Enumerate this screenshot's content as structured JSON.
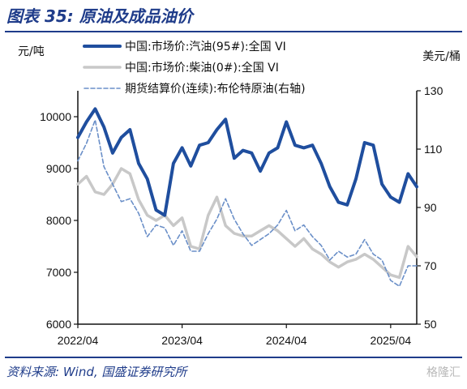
{
  "header": {
    "title": "图表 35:  原油及成品油价"
  },
  "footer": {
    "source": "资料来源:  Wind, 国盛证券研究所",
    "watermark": "格隆汇"
  },
  "chart_data": {
    "type": "line",
    "left_unit": "元/吨",
    "right_unit": "美元/桶",
    "x_ticks": [
      "2022/04",
      "2023/04",
      "2024/04",
      "2025/04"
    ],
    "x_range": [
      "2022/04",
      "2025/07"
    ],
    "y_left": {
      "min": 6000,
      "max": 10500,
      "ticks": [
        6000,
        7000,
        8000,
        9000,
        10000
      ]
    },
    "y_right": {
      "min": 50,
      "max": 130,
      "ticks": [
        50,
        70,
        90,
        110,
        130
      ]
    },
    "grid": false,
    "legend_position": "top",
    "series": [
      {
        "name": "中国:市场价:汽油(95#):全国 VI",
        "axis": "left",
        "color": "#1f4e9e",
        "style": "solid",
        "x": [
          "2022/04",
          "2022/05",
          "2022/06",
          "2022/07",
          "2022/08",
          "2022/09",
          "2022/10",
          "2022/11",
          "2022/12",
          "2023/01",
          "2023/02",
          "2023/03",
          "2023/04",
          "2023/05",
          "2023/06",
          "2023/07",
          "2023/08",
          "2023/09",
          "2023/10",
          "2023/11",
          "2023/12",
          "2024/01",
          "2024/02",
          "2024/03",
          "2024/04",
          "2024/05",
          "2024/06",
          "2024/07",
          "2024/08",
          "2024/09",
          "2024/10",
          "2024/11",
          "2024/12",
          "2025/01",
          "2025/02",
          "2025/03",
          "2025/04",
          "2025/05",
          "2025/06",
          "2025/07"
        ],
        "y": [
          9600,
          9900,
          10150,
          9800,
          9300,
          9600,
          9750,
          9100,
          8800,
          8200,
          8100,
          9100,
          9400,
          9050,
          9450,
          9500,
          9750,
          9950,
          9200,
          9350,
          9300,
          8950,
          9300,
          9400,
          9900,
          9450,
          9400,
          9450,
          9100,
          8650,
          8350,
          8300,
          8800,
          9500,
          9450,
          8700,
          8450,
          8350,
          8900,
          8650
        ]
      },
      {
        "name": "中国:市场价:柴油(0#):全国 VI",
        "axis": "left",
        "color": "#c8c8c8",
        "style": "solid",
        "x": [
          "2022/04",
          "2022/05",
          "2022/06",
          "2022/07",
          "2022/08",
          "2022/09",
          "2022/10",
          "2022/11",
          "2022/12",
          "2023/01",
          "2023/02",
          "2023/03",
          "2023/04",
          "2023/05",
          "2023/06",
          "2023/07",
          "2023/08",
          "2023/09",
          "2023/10",
          "2023/11",
          "2023/12",
          "2024/01",
          "2024/02",
          "2024/03",
          "2024/04",
          "2024/05",
          "2024/06",
          "2024/07",
          "2024/08",
          "2024/09",
          "2024/10",
          "2024/11",
          "2024/12",
          "2025/01",
          "2025/02",
          "2025/03",
          "2025/04",
          "2025/05",
          "2025/06",
          "2025/07"
        ],
        "y": [
          8700,
          8850,
          8550,
          8500,
          8700,
          9000,
          8900,
          8400,
          8100,
          8000,
          8100,
          7900,
          8050,
          7500,
          7450,
          8100,
          8450,
          7900,
          7750,
          7700,
          7700,
          7800,
          7900,
          7800,
          7650,
          7500,
          7650,
          7450,
          7350,
          7200,
          7100,
          7200,
          7250,
          7350,
          7250,
          7100,
          6950,
          6900,
          7500,
          7300
        ]
      },
      {
        "name": "期货结算价(连续):布伦特原油(右轴)",
        "axis": "right",
        "color": "#6a8fc8",
        "style": "dashed",
        "x": [
          "2022/04",
          "2022/05",
          "2022/06",
          "2022/07",
          "2022/08",
          "2022/09",
          "2022/10",
          "2022/11",
          "2022/12",
          "2023/01",
          "2023/02",
          "2023/03",
          "2023/04",
          "2023/05",
          "2023/06",
          "2023/07",
          "2023/08",
          "2023/09",
          "2023/10",
          "2023/11",
          "2023/12",
          "2024/01",
          "2024/02",
          "2024/03",
          "2024/04",
          "2024/05",
          "2024/06",
          "2024/07",
          "2024/08",
          "2024/09",
          "2024/10",
          "2024/11",
          "2024/12",
          "2025/01",
          "2025/02",
          "2025/03",
          "2025/04",
          "2025/05",
          "2025/06",
          "2025/07"
        ],
        "y": [
          106,
          112,
          120,
          104,
          98,
          92,
          93,
          88,
          80,
          84,
          83,
          77,
          82,
          75,
          75,
          81,
          86,
          93,
          86,
          81,
          77,
          79,
          81,
          84,
          89,
          82,
          84,
          80,
          77,
          72,
          75,
          73,
          74,
          79,
          74,
          72,
          65,
          63,
          70,
          70
        ]
      }
    ]
  }
}
